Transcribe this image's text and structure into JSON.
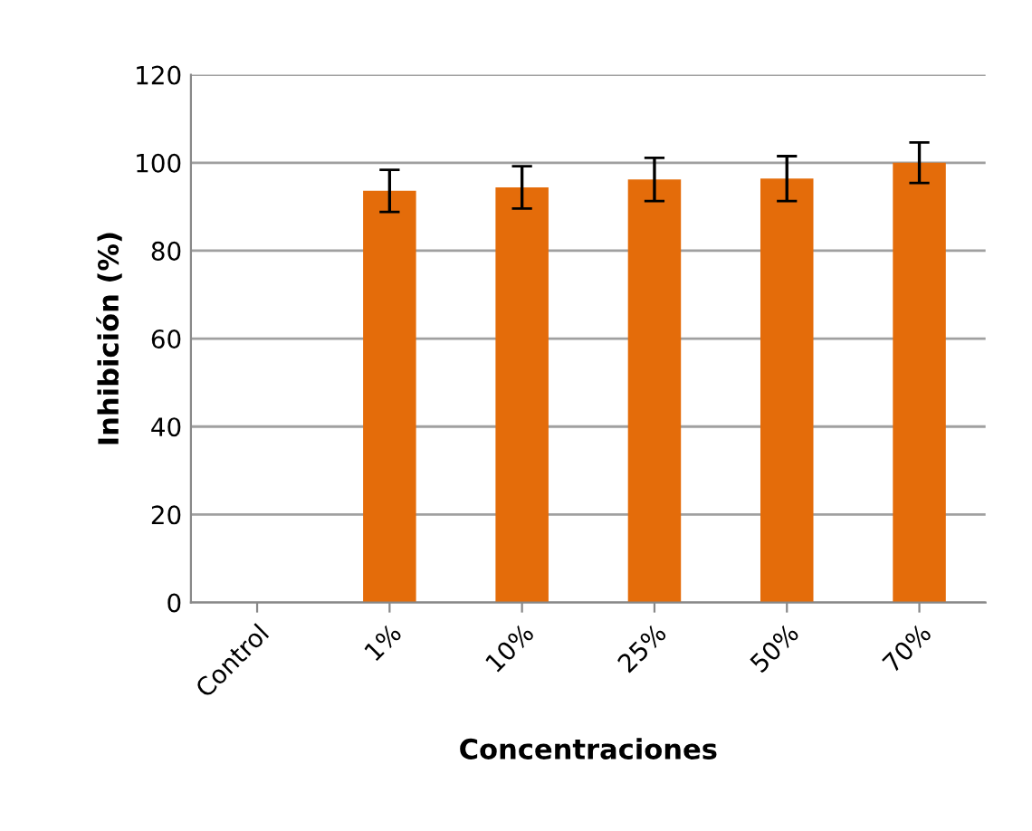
{
  "chart_data": {
    "type": "bar",
    "xlabel": "Concentraciones",
    "ylabel": "Inhibición (%)",
    "categories": [
      "Control",
      "1%",
      "10%",
      "25%",
      "50%",
      "70%"
    ],
    "values": [
      0,
      93.6,
      94.4,
      96.2,
      96.4,
      100.0
    ],
    "errors": [
      null,
      4.8,
      4.8,
      4.9,
      5.1,
      4.6
    ],
    "color": "#e46c0a",
    "ylim": [
      0,
      120
    ],
    "yticks": [
      0,
      20,
      40,
      60,
      80,
      100,
      120
    ],
    "grid": "y",
    "legend": false
  }
}
